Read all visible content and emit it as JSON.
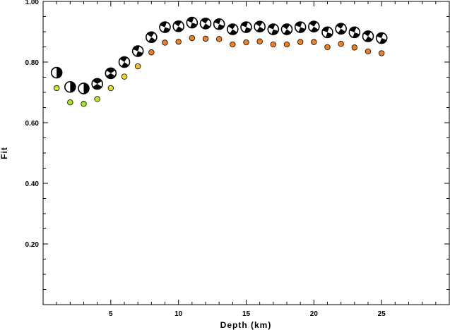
{
  "chart_data": {
    "type": "scatter",
    "title": "",
    "xlabel": "Depth (km)",
    "ylabel": "Fit",
    "xlim": [
      0,
      30
    ],
    "ylim": [
      0,
      1.0
    ],
    "x_ticks": [
      5,
      10,
      15,
      20,
      25
    ],
    "x_tick_labels": [
      "5",
      "10",
      "15",
      "20",
      "25"
    ],
    "y_ticks": [
      0.2,
      0.4,
      0.6,
      0.8,
      1.0
    ],
    "y_tick_labels": [
      "0.20",
      "0.40",
      "0.60",
      "0.80",
      "1.00"
    ],
    "grid": false,
    "series": [
      {
        "marker": "focal-mechanism-beachball",
        "x": [
          1,
          2,
          3,
          4,
          5,
          6,
          7,
          8,
          9,
          10,
          11,
          12,
          13,
          14,
          15,
          16,
          17,
          18,
          19,
          20,
          21,
          22,
          23,
          24,
          25
        ],
        "y": [
          0.765,
          0.718,
          0.713,
          0.728,
          0.763,
          0.8,
          0.836,
          0.882,
          0.915,
          0.918,
          0.93,
          0.927,
          0.925,
          0.908,
          0.915,
          0.917,
          0.908,
          0.908,
          0.915,
          0.917,
          0.898,
          0.91,
          0.898,
          0.885,
          0.879
        ]
      },
      {
        "marker": "circle",
        "x": [
          1,
          2,
          3,
          4,
          5,
          6,
          7,
          8,
          9,
          10,
          11,
          12,
          13,
          14,
          15,
          16,
          17,
          18,
          19,
          20,
          21,
          22,
          23,
          24,
          25
        ],
        "y": [
          0.714,
          0.667,
          0.662,
          0.678,
          0.714,
          0.752,
          0.786,
          0.832,
          0.864,
          0.867,
          0.879,
          0.877,
          0.876,
          0.858,
          0.865,
          0.868,
          0.858,
          0.858,
          0.866,
          0.866,
          0.849,
          0.86,
          0.848,
          0.835,
          0.829
        ],
        "colors": [
          "#c8e81f",
          "#a8e51f",
          "#a8e51f",
          "#b8e51f",
          "#e0e81f",
          "#f0e020",
          "#f0c020",
          "#f08020",
          "#f08020",
          "#f08020",
          "#f08020",
          "#f08020",
          "#f08020",
          "#f08020",
          "#f08020",
          "#f08020",
          "#f08020",
          "#f08020",
          "#f08020",
          "#f08020",
          "#f08020",
          "#f08020",
          "#f08020",
          "#f08020",
          "#f08020"
        ]
      }
    ]
  }
}
